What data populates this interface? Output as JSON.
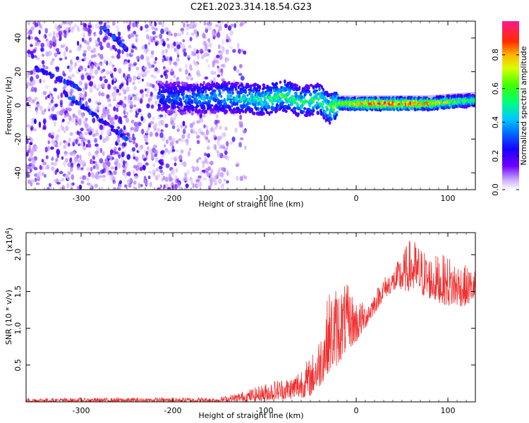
{
  "title": "C2E1.2023.314.18.54.G23",
  "colors": {
    "snr_line": "#f03030",
    "spectrogram_scatter": "#7a2cf0",
    "colormap": [
      "#ffffff",
      "#5b00ff",
      "#0000ff",
      "#00bfff",
      "#00ff66",
      "#8cff00",
      "#ffd000",
      "#ff3000",
      "#ff1a8c"
    ]
  },
  "chart_data": [
    {
      "type": "heatmap",
      "xlabel": "Height of straight line (km)",
      "ylabel": "Frequency (Hz)",
      "xlim": [
        -360,
        130
      ],
      "ylim": [
        -50,
        50
      ],
      "xticks": [
        -300,
        -200,
        -100,
        0,
        100
      ],
      "yticks": [
        -40,
        -20,
        0,
        20,
        40
      ],
      "colorbar": {
        "label": "Normalized spectral amplitude",
        "range": [
          0.0,
          1.0
        ],
        "ticks": [
          0.0,
          0.2,
          0.4,
          0.6,
          0.8
        ]
      },
      "noise_region_x": [
        -360,
        -140
      ],
      "main_ridge": {
        "x": [
          -210,
          -180,
          -150,
          -120,
          -100,
          -80,
          -60,
          -40,
          -30,
          -20,
          0,
          20,
          40,
          60,
          80,
          100,
          130
        ],
        "freq": [
          5,
          4,
          5,
          4,
          3,
          6,
          2,
          4,
          -2,
          1,
          1,
          1,
          1,
          1,
          1,
          2,
          3
        ],
        "amplitude": [
          0.35,
          0.4,
          0.45,
          0.5,
          0.55,
          0.6,
          0.55,
          0.6,
          0.6,
          0.7,
          0.9,
          0.95,
          0.95,
          0.95,
          0.85,
          0.75,
          0.6
        ]
      },
      "diagonal_tracks": [
        {
          "x": [
            -350,
            -300
          ],
          "freq": [
            22,
            10
          ]
        },
        {
          "x": [
            -320,
            -250
          ],
          "freq": [
            8,
            -20
          ]
        },
        {
          "x": [
            -275,
            -250
          ],
          "freq": [
            46,
            33
          ]
        }
      ]
    },
    {
      "type": "line",
      "xlabel": "Height of straight line (km)",
      "ylabel": "SNR (10 * v/v)",
      "y_scale_label": "(x10^4)",
      "xlim": [
        -360,
        130
      ],
      "ylim": [
        0,
        2.3
      ],
      "xticks": [
        -300,
        -200,
        -100,
        0,
        100
      ],
      "yticks": [
        0.5,
        1.0,
        1.5,
        2.0
      ],
      "series": [
        {
          "envelope_x": [
            -360,
            -150,
            -130,
            -110,
            -90,
            -70,
            -60,
            -50,
            -40,
            -30,
            -20,
            -10,
            0,
            10,
            20,
            30,
            40,
            60,
            80,
            100,
            120,
            130
          ],
          "envelope_min": [
            0.0,
            0.0,
            0.0,
            0.01,
            0.02,
            0.04,
            0.05,
            0.08,
            0.2,
            0.4,
            0.5,
            0.7,
            0.8,
            1.0,
            1.2,
            1.4,
            1.5,
            1.5,
            1.4,
            1.3,
            1.3,
            1.4
          ],
          "envelope_max": [
            0.05,
            0.06,
            0.12,
            0.2,
            0.3,
            0.35,
            0.5,
            0.6,
            0.9,
            1.5,
            1.6,
            1.6,
            1.4,
            1.35,
            1.5,
            1.7,
            1.8,
            2.25,
            2.0,
            2.0,
            1.85,
            1.8
          ]
        }
      ]
    }
  ],
  "labels": {
    "top_xlabel": "Height of straight line (km)",
    "top_ylabel": "Frequency (Hz)",
    "colorbar_label": "Normalized spectral amplitude",
    "bottom_xlabel": "Height of straight line (km)",
    "bottom_ylabel": "SNR (10 * v/v)",
    "bottom_scale": "(x10",
    "bottom_scale_exp": "4",
    "bottom_scale_close": ")"
  }
}
